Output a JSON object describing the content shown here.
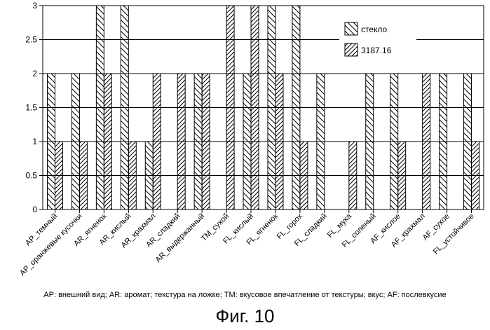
{
  "chart_data": {
    "type": "bar",
    "title": "",
    "xlabel": "",
    "ylabel": "",
    "ylim": [
      0,
      3
    ],
    "yticks": [
      0,
      0.5,
      1,
      1.5,
      2,
      2.5,
      3
    ],
    "grid": true,
    "legend_position": "top-right",
    "categories": [
      "AP_темный",
      "AP_оранжевые кусочки",
      "AR_ягненок",
      "AR_кислый",
      "AR_крахмал",
      "AR_сладкий",
      "AR_выдержанный",
      "TM_сухой",
      "FL_кислый",
      "FL_ягненок",
      "FL_горох",
      "FL_сладкий",
      "FL_мука",
      "FL_соленый",
      "AF_кислое",
      "AF_крахмал",
      "AF_сухое",
      "FL_устойчивое"
    ],
    "series": [
      {
        "name": "стекло",
        "pattern": "diagonal-backslash",
        "values": [
          2,
          2,
          3,
          3,
          1,
          0,
          2,
          0,
          2,
          3,
          3,
          2,
          0,
          2,
          2,
          0,
          2,
          2
        ]
      },
      {
        "name": "3187.16",
        "pattern": "diagonal-slash",
        "values": [
          1,
          1,
          2,
          1,
          2,
          2,
          2,
          3,
          3,
          2,
          1,
          0,
          1,
          0,
          1,
          2,
          0,
          1
        ]
      }
    ]
  },
  "caption": "AP: внешний вид; AR: аромат; текстура на ложке; TM: вкусовое впечатление от текстуры;  вкус; AF: послевкусие",
  "figure_title": "Фиг. 10",
  "colors": {
    "bar_stroke": "#000000",
    "hatch": "#000000",
    "grid": "#000000",
    "plot_bg": "#ffffff"
  }
}
